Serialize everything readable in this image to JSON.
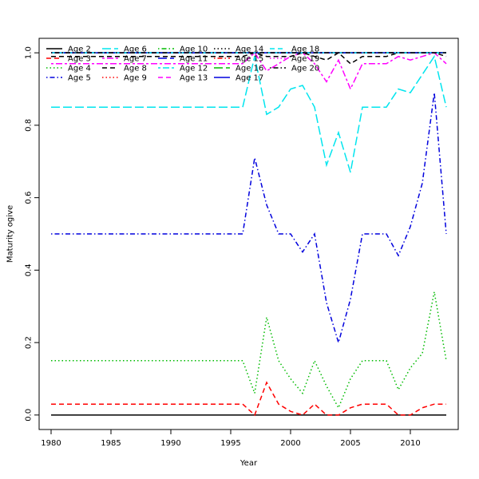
{
  "chart_data": {
    "type": "line",
    "title": "",
    "xlabel": "Year",
    "ylabel": "Maturity ogive",
    "xlim": [
      1979,
      2014
    ],
    "ylim": [
      -0.04,
      1.04
    ],
    "x_ticks": [
      1980,
      1985,
      1990,
      1995,
      2000,
      2005,
      2010
    ],
    "y_ticks": [
      0.0,
      0.2,
      0.4,
      0.6,
      0.8,
      1.0
    ],
    "x_tick_labels": [
      "1980",
      "1985",
      "1990",
      "1995",
      "2000",
      "2005",
      "2010"
    ],
    "y_tick_labels": [
      "0.0",
      "0.2",
      "0.4",
      "0.6",
      "0.8",
      "1.0"
    ],
    "legend_position": "top-left",
    "grid": false,
    "x": [
      1980,
      1981,
      1982,
      1983,
      1984,
      1985,
      1986,
      1987,
      1988,
      1989,
      1990,
      1991,
      1992,
      1993,
      1994,
      1995,
      1996,
      1997,
      1998,
      1999,
      2000,
      2001,
      2002,
      2003,
      2004,
      2005,
      2006,
      2007,
      2008,
      2009,
      2010,
      2011,
      2012,
      2013
    ],
    "series": [
      {
        "name": "Age 2",
        "color": "#000000",
        "dash": "solid",
        "values": [
          0,
          0,
          0,
          0,
          0,
          0,
          0,
          0,
          0,
          0,
          0,
          0,
          0,
          0,
          0,
          0,
          0,
          0,
          0,
          0,
          0,
          0,
          0,
          0,
          0,
          0,
          0,
          0,
          0,
          0,
          0,
          0,
          0,
          0
        ]
      },
      {
        "name": "Age 3",
        "color": "#ff0000",
        "dash": "dashed",
        "values": [
          0.03,
          0.03,
          0.03,
          0.03,
          0.03,
          0.03,
          0.03,
          0.03,
          0.03,
          0.03,
          0.03,
          0.03,
          0.03,
          0.03,
          0.03,
          0.03,
          0.03,
          0.0,
          0.09,
          0.03,
          0.01,
          0.0,
          0.03,
          0.0,
          0.0,
          0.02,
          0.03,
          0.03,
          0.03,
          0.0,
          0.0,
          0.02,
          0.03,
          0.03
        ]
      },
      {
        "name": "Age 4",
        "color": "#00bb00",
        "dash": "dotted",
        "values": [
          0.15,
          0.15,
          0.15,
          0.15,
          0.15,
          0.15,
          0.15,
          0.15,
          0.15,
          0.15,
          0.15,
          0.15,
          0.15,
          0.15,
          0.15,
          0.15,
          0.15,
          0.06,
          0.27,
          0.15,
          0.1,
          0.06,
          0.15,
          0.08,
          0.02,
          0.1,
          0.15,
          0.15,
          0.15,
          0.07,
          0.13,
          0.17,
          0.34,
          0.15
        ]
      },
      {
        "name": "Age 5",
        "color": "#0000dd",
        "dash": "dotdash",
        "values": [
          0.5,
          0.5,
          0.5,
          0.5,
          0.5,
          0.5,
          0.5,
          0.5,
          0.5,
          0.5,
          0.5,
          0.5,
          0.5,
          0.5,
          0.5,
          0.5,
          0.5,
          0.71,
          0.58,
          0.5,
          0.5,
          0.45,
          0.5,
          0.31,
          0.2,
          0.32,
          0.5,
          0.5,
          0.5,
          0.44,
          0.52,
          0.64,
          0.89,
          0.5
        ]
      },
      {
        "name": "Age 6",
        "color": "#00e5ee",
        "dash": "longdash",
        "values": [
          0.85,
          0.85,
          0.85,
          0.85,
          0.85,
          0.85,
          0.85,
          0.85,
          0.85,
          0.85,
          0.85,
          0.85,
          0.85,
          0.85,
          0.85,
          0.85,
          0.85,
          0.99,
          0.83,
          0.85,
          0.9,
          0.91,
          0.85,
          0.69,
          0.78,
          0.67,
          0.85,
          0.85,
          0.85,
          0.9,
          0.89,
          0.94,
          0.99,
          0.85
        ]
      },
      {
        "name": "Age 7",
        "color": "#ff00ff",
        "dash": "twodash",
        "values": [
          0.97,
          0.97,
          0.97,
          0.97,
          0.97,
          0.97,
          0.97,
          0.97,
          0.97,
          0.97,
          0.97,
          0.97,
          0.97,
          0.97,
          0.97,
          0.97,
          0.97,
          1.0,
          0.95,
          0.97,
          0.99,
          1.0,
          0.97,
          0.92,
          0.98,
          0.9,
          0.97,
          0.97,
          0.97,
          0.99,
          0.98,
          0.99,
          1.0,
          0.97
        ]
      },
      {
        "name": "Age 8",
        "color": "#000000",
        "dash": "dashed",
        "values": [
          0.99,
          0.99,
          0.99,
          0.99,
          0.99,
          0.99,
          0.99,
          0.99,
          0.99,
          0.99,
          0.99,
          0.99,
          0.99,
          0.99,
          0.99,
          0.99,
          0.99,
          1.0,
          0.99,
          0.99,
          0.99,
          1.0,
          0.99,
          0.98,
          1.0,
          0.97,
          0.99,
          0.99,
          0.99,
          1.0,
          1.0,
          1.0,
          1.0,
          0.99
        ]
      },
      {
        "name": "Age 9",
        "color": "#ff0000",
        "dash": "dotted",
        "values": [
          1,
          1,
          1,
          1,
          1,
          1,
          1,
          1,
          1,
          1,
          1,
          1,
          1,
          1,
          1,
          1,
          1,
          1,
          1,
          1,
          1,
          1,
          1,
          1,
          1,
          1,
          1,
          1,
          1,
          1,
          1,
          1,
          1,
          1
        ]
      },
      {
        "name": "Age 10",
        "color": "#00bb00",
        "dash": "dotdash",
        "values": [
          1,
          1,
          1,
          1,
          1,
          1,
          1,
          1,
          1,
          1,
          1,
          1,
          1,
          1,
          1,
          1,
          1,
          1,
          1,
          1,
          1,
          1,
          1,
          1,
          1,
          1,
          1,
          1,
          1,
          1,
          1,
          1,
          1,
          1
        ]
      },
      {
        "name": "Age 11",
        "color": "#0000dd",
        "dash": "longdash",
        "values": [
          1,
          1,
          1,
          1,
          1,
          1,
          1,
          1,
          1,
          1,
          1,
          1,
          1,
          1,
          1,
          1,
          1,
          1,
          1,
          1,
          1,
          1,
          1,
          1,
          1,
          1,
          1,
          1,
          1,
          1,
          1,
          1,
          1,
          1
        ]
      },
      {
        "name": "Age 12",
        "color": "#00e5ee",
        "dash": "twodash",
        "values": [
          1,
          1,
          1,
          1,
          1,
          1,
          1,
          1,
          1,
          1,
          1,
          1,
          1,
          1,
          1,
          1,
          1,
          1,
          1,
          1,
          1,
          1,
          1,
          1,
          1,
          1,
          1,
          1,
          1,
          1,
          1,
          1,
          1,
          1
        ]
      },
      {
        "name": "Age 13",
        "color": "#ff00ff",
        "dash": "dashed",
        "values": [
          1,
          1,
          1,
          1,
          1,
          1,
          1,
          1,
          1,
          1,
          1,
          1,
          1,
          1,
          1,
          1,
          1,
          1,
          1,
          1,
          1,
          1,
          1,
          1,
          1,
          1,
          1,
          1,
          1,
          1,
          1,
          1,
          1,
          1
        ]
      },
      {
        "name": "Age 14",
        "color": "#000000",
        "dash": "dotted",
        "values": [
          1,
          1,
          1,
          1,
          1,
          1,
          1,
          1,
          1,
          1,
          1,
          1,
          1,
          1,
          1,
          1,
          1,
          1,
          1,
          1,
          1,
          1,
          1,
          1,
          1,
          1,
          1,
          1,
          1,
          1,
          1,
          1,
          1,
          1
        ]
      },
      {
        "name": "Age 15",
        "color": "#ff0000",
        "dash": "dotdash",
        "values": [
          1,
          1,
          1,
          1,
          1,
          1,
          1,
          1,
          1,
          1,
          1,
          1,
          1,
          1,
          1,
          1,
          1,
          1,
          1,
          1,
          1,
          1,
          1,
          1,
          1,
          1,
          1,
          1,
          1,
          1,
          1,
          1,
          1,
          1
        ]
      },
      {
        "name": "Age 16",
        "color": "#00bb00",
        "dash": "longdash",
        "values": [
          1,
          1,
          1,
          1,
          1,
          1,
          1,
          1,
          1,
          1,
          1,
          1,
          1,
          1,
          1,
          1,
          1,
          1,
          1,
          1,
          1,
          1,
          1,
          1,
          1,
          1,
          1,
          1,
          1,
          1,
          1,
          1,
          1,
          1
        ]
      },
      {
        "name": "Age 17",
        "color": "#0000dd",
        "dash": "solid",
        "values": [
          1,
          1,
          1,
          1,
          1,
          1,
          1,
          1,
          1,
          1,
          1,
          1,
          1,
          1,
          1,
          1,
          1,
          1,
          1,
          1,
          1,
          1,
          1,
          1,
          1,
          1,
          1,
          1,
          1,
          1,
          1,
          1,
          1,
          1
        ]
      },
      {
        "name": "Age 18",
        "color": "#00e5ee",
        "dash": "dashed",
        "values": [
          1,
          1,
          1,
          1,
          1,
          1,
          1,
          1,
          1,
          1,
          1,
          1,
          1,
          1,
          1,
          1,
          1,
          1,
          1,
          1,
          1,
          1,
          1,
          1,
          1,
          1,
          1,
          1,
          1,
          1,
          1,
          1,
          1,
          1
        ]
      },
      {
        "name": "Age 19",
        "color": "#ff00ff",
        "dash": "dotted",
        "values": [
          1,
          1,
          1,
          1,
          1,
          1,
          1,
          1,
          1,
          1,
          1,
          1,
          1,
          1,
          1,
          1,
          1,
          1,
          1,
          1,
          1,
          1,
          1,
          1,
          1,
          1,
          1,
          1,
          1,
          1,
          1,
          1,
          1,
          1
        ]
      },
      {
        "name": "Age 20",
        "color": "#000000",
        "dash": "dotdash",
        "values": [
          1,
          1,
          1,
          1,
          1,
          1,
          1,
          1,
          1,
          1,
          1,
          1,
          1,
          1,
          1,
          1,
          1,
          1,
          1,
          1,
          1,
          1,
          1,
          1,
          1,
          1,
          1,
          1,
          1,
          1,
          1,
          1,
          1,
          1
        ]
      }
    ]
  }
}
